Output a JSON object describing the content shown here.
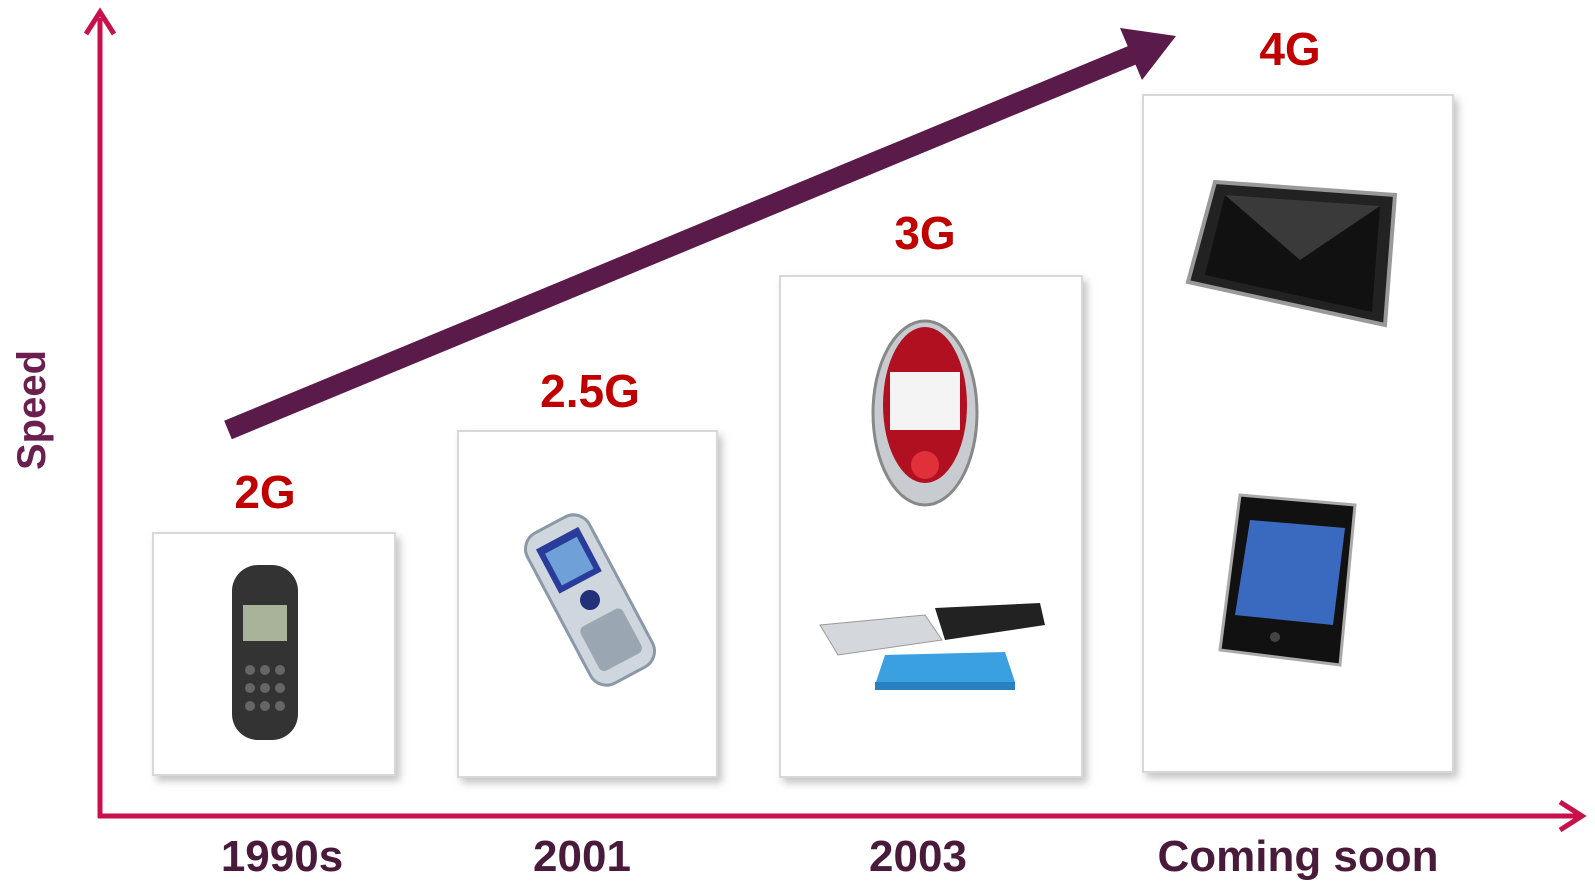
{
  "axes": {
    "y_label": "Speed"
  },
  "stages": [
    {
      "label": "2G",
      "period": "1990s"
    },
    {
      "label": "2.5G",
      "period": "2001"
    },
    {
      "label": "3G",
      "period": "2003"
    },
    {
      "label": "4G",
      "period": "Coming soon"
    }
  ]
}
